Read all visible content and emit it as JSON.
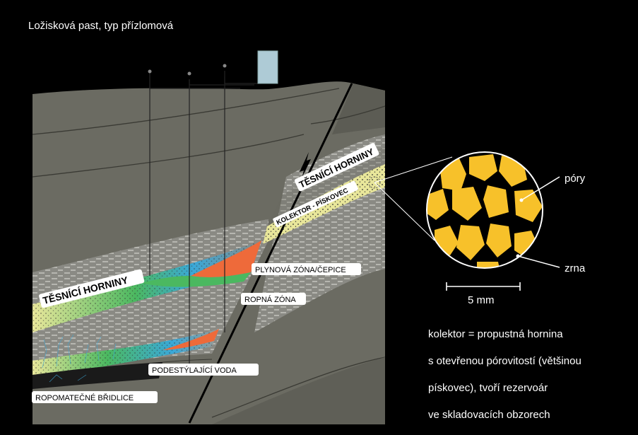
{
  "title": "Ložisková past, typ přízlomová",
  "layers": {
    "seal_upper": "TĚSNÍCÍ HORNINY",
    "seal_left": "TĚSNÍCÍ HORNINY",
    "reservoir": "KOLEKTOR - PÍSKOVEC",
    "gas_zone": "PLYNOVÁ ZÓNA/ČEPICE",
    "oil_zone": "ROPNÁ ZÓNA",
    "water": "PODESTÝLAJÍCÍ VODA",
    "source_rock": "ROPOMATEČNÉ BŘIDLICE"
  },
  "magnified": {
    "pores_label": "póry",
    "grains_label": "zrna",
    "scale_label": "5 mm"
  },
  "note_lines": [
    "kolektor = propustná hornina",
    "s otevřenou pórovitostí (většinou",
    "pískovec), tvoří rezervoár",
    "ve skladovacích obzorech"
  ],
  "colors": {
    "rock": "#6b6b62",
    "rock_dark": "#5a5a52",
    "sand": "#e8e69a",
    "gas": "#ee6a3a",
    "oil": "#4bb860",
    "water": "#3aa8d8",
    "grain": "#f7c12a",
    "tank": "#aecbd6"
  }
}
